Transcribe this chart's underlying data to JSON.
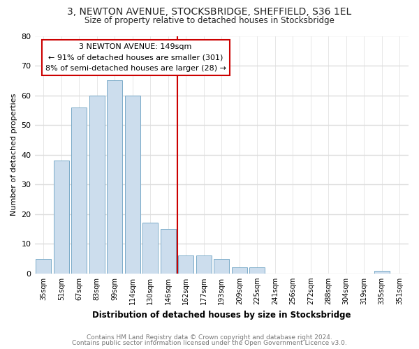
{
  "title": "3, NEWTON AVENUE, STOCKSBRIDGE, SHEFFIELD, S36 1EL",
  "subtitle": "Size of property relative to detached houses in Stocksbridge",
  "xlabel": "Distribution of detached houses by size in Stocksbridge",
  "ylabel": "Number of detached properties",
  "bar_labels": [
    "35sqm",
    "51sqm",
    "67sqm",
    "83sqm",
    "99sqm",
    "114sqm",
    "130sqm",
    "146sqm",
    "162sqm",
    "177sqm",
    "193sqm",
    "209sqm",
    "225sqm",
    "241sqm",
    "256sqm",
    "272sqm",
    "288sqm",
    "304sqm",
    "319sqm",
    "335sqm",
    "351sqm"
  ],
  "bar_values": [
    5,
    38,
    56,
    60,
    65,
    60,
    17,
    15,
    6,
    6,
    5,
    2,
    2,
    0,
    0,
    0,
    0,
    0,
    0,
    1,
    0
  ],
  "bar_color": "#ccdded",
  "bar_edge_color": "#7aaac8",
  "vline_x": 7.5,
  "vline_color": "#cc0000",
  "annotation_title": "3 NEWTON AVENUE: 149sqm",
  "annotation_line1": "← 91% of detached houses are smaller (301)",
  "annotation_line2": "8% of semi-detached houses are larger (28) →",
  "annotation_box_color": "#cc0000",
  "ylim": [
    0,
    80
  ],
  "yticks": [
    0,
    10,
    20,
    30,
    40,
    50,
    60,
    70,
    80
  ],
  "background_color": "#ffffff",
  "plot_bg_color": "#ffffff",
  "grid_color": "#dddddd",
  "footer1": "Contains HM Land Registry data © Crown copyright and database right 2024.",
  "footer2": "Contains public sector information licensed under the Open Government Licence v3.0."
}
